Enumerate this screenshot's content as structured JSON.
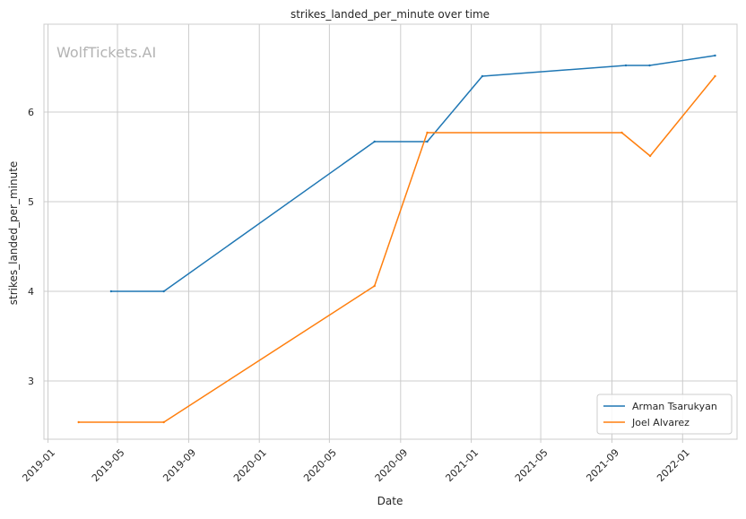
{
  "chart_data": {
    "type": "line",
    "title": "strikes_landed_per_minute over time",
    "xlabel": "Date",
    "ylabel": "strikes_landed_per_minute",
    "watermark": "WolfTickets.AI",
    "x_ticks": [
      "2019-01",
      "2019-05",
      "2019-09",
      "2020-01",
      "2020-05",
      "2020-09",
      "2021-01",
      "2021-05",
      "2021-09",
      "2022-01"
    ],
    "y_ticks": [
      3,
      4,
      5,
      6
    ],
    "xlim": [
      "2018-12-25",
      "2022-04-05"
    ],
    "ylim": [
      2.35,
      6.98
    ],
    "grid": true,
    "legend_position": "lower right",
    "colors": {
      "Arman Tsarukyan": "#1f77b4",
      "Joel Alvarez": "#ff7f0e"
    },
    "series": [
      {
        "name": "Arman Tsarukyan",
        "color": "#1f77b4",
        "points": [
          [
            "2019-04-20",
            4.0
          ],
          [
            "2019-07-20",
            4.0
          ],
          [
            "2020-07-18",
            5.67
          ],
          [
            "2020-10-17",
            5.67
          ],
          [
            "2021-01-20",
            6.4
          ],
          [
            "2021-09-25",
            6.52
          ],
          [
            "2021-11-05",
            6.52
          ],
          [
            "2022-02-26",
            6.63
          ]
        ]
      },
      {
        "name": "Joel Alvarez",
        "color": "#ff7f0e",
        "points": [
          [
            "2019-02-23",
            2.54
          ],
          [
            "2019-07-20",
            2.54
          ],
          [
            "2020-07-18",
            4.06
          ],
          [
            "2020-10-17",
            5.77
          ],
          [
            "2021-09-18",
            5.77
          ],
          [
            "2021-11-06",
            5.51
          ],
          [
            "2022-02-26",
            6.4
          ]
        ]
      }
    ]
  }
}
